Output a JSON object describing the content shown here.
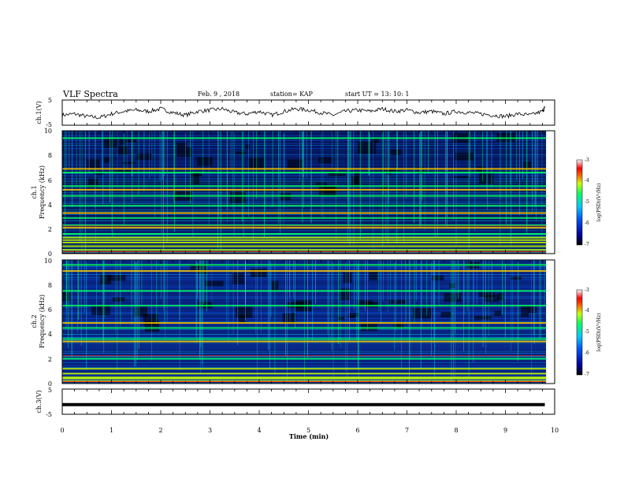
{
  "header": {
    "title": "VLF Spectra",
    "date": "Feb. 9 , 2018",
    "station": "station= KAP",
    "start_ut": "start UT = 13: 10: 1"
  },
  "chart_data": [
    {
      "type": "line",
      "panel": "ch1-waveform",
      "ylabel": "ch.1(V)",
      "ylim": [
        -5,
        5
      ],
      "yticks": [
        "5",
        "-5"
      ],
      "x": [
        0.0,
        0.25,
        0.5,
        0.75,
        1.0,
        1.25,
        1.5,
        1.75,
        2.0,
        2.25,
        2.5,
        2.75,
        3.0,
        3.25,
        3.5,
        3.75,
        4.0,
        4.25,
        4.5,
        4.75,
        5.0,
        5.25,
        5.5,
        5.75,
        6.0,
        6.25,
        6.5,
        6.75,
        7.0,
        7.25,
        7.5,
        7.75,
        8.0,
        8.25,
        8.5,
        8.75,
        9.0,
        9.25,
        9.5,
        9.75,
        9.8
      ],
      "y": [
        -1.0,
        -0.5,
        -1.5,
        -2.0,
        -0.5,
        0.5,
        1.0,
        0.5,
        1.5,
        0.0,
        -1.0,
        0.5,
        1.0,
        1.5,
        0.0,
        -0.5,
        0.5,
        -1.0,
        0.5,
        1.5,
        1.0,
        0.0,
        -1.0,
        0.5,
        1.0,
        0.5,
        1.5,
        0.5,
        1.0,
        0.0,
        0.5,
        -0.5,
        0.5,
        0.0,
        -0.5,
        -1.0,
        -1.5,
        -0.5,
        -1.0,
        0.5,
        2.0
      ]
    },
    {
      "type": "heatmap",
      "panel": "ch1-spectrogram",
      "ylabel_line1": "ch.1",
      "ylabel_line2": "Frequency (kHz)",
      "ylim": [
        0,
        10
      ],
      "yticks": [
        "0",
        "2",
        "4",
        "6",
        "8",
        "10"
      ],
      "colorbar": {
        "label": "log(PSD)(V²/Hz)",
        "range": [
          -7,
          -3
        ],
        "ticks": [
          "-3",
          "-4",
          "-5",
          "-6",
          "-7"
        ]
      },
      "bands_khz": [
        0.3,
        0.6,
        0.9,
        1.1,
        1.3,
        1.6,
        2.1,
        2.3,
        2.9,
        3.3,
        3.9,
        4.7,
        5.2,
        5.5,
        6.6,
        6.9,
        9.4
      ]
    },
    {
      "type": "heatmap",
      "panel": "ch2-spectrogram",
      "ylabel_line1": "ch.2",
      "ylabel_line2": "Frequency (kHz)",
      "ylim": [
        0,
        10
      ],
      "yticks": [
        "0",
        "2",
        "4",
        "6",
        "8",
        "10"
      ],
      "colorbar": {
        "label": "log(PSD)(V²/Hz)",
        "range": [
          -7,
          -3
        ],
        "ticks": [
          "-3",
          "-4",
          "-5",
          "-6",
          "-7"
        ]
      },
      "bands_khz": [
        0.2,
        0.4,
        0.5,
        0.8,
        1.2,
        2.0,
        3.4,
        3.6,
        4.5,
        4.9,
        6.3,
        7.5,
        9.1,
        9.6
      ]
    },
    {
      "type": "line",
      "panel": "ch3-waveform",
      "ylabel": "ch.3(V)",
      "ylim": [
        -5,
        5
      ],
      "yticks": [
        "5",
        "-5"
      ],
      "x": [
        0,
        9.8
      ],
      "y": [
        -1.2,
        -1.2
      ],
      "xlabel": "Time (min)",
      "xlim": [
        0,
        10
      ],
      "xticks": [
        "0",
        "1",
        "2",
        "3",
        "4",
        "5",
        "6",
        "7",
        "8",
        "9",
        "10"
      ]
    }
  ]
}
